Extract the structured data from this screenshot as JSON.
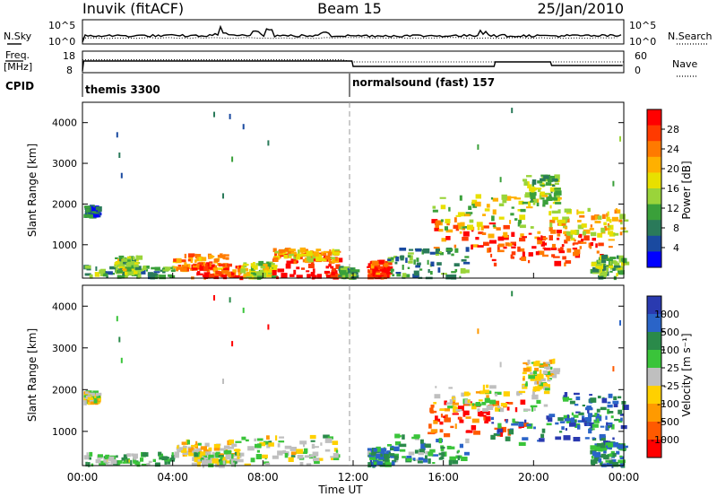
{
  "header": {
    "station": "Inuvik (fitACF)",
    "beam": "Beam 15",
    "date": "25/Jan/2010"
  },
  "summary": {
    "nsky_label": "N.Sky",
    "nsearch_label": "N.Search",
    "freq_label_1": "Freq.",
    "freq_label_2": "[MHz]",
    "nave_label": "Nave",
    "cpid_label": "CPID",
    "count_ticks": [
      "10^5",
      "10^0"
    ],
    "freq_ticks": [
      "18",
      "8"
    ],
    "nave_ticks": [
      "60",
      "0"
    ],
    "cpid_segments": [
      {
        "label": "themis 3300",
        "start_hour": 0,
        "end_hour": 12
      },
      {
        "label": "normalsound (fast) 157",
        "start_hour": 12,
        "end_hour": 24
      }
    ]
  },
  "colorbars": {
    "power": {
      "label": "Power [dB]",
      "ticks": [
        "28",
        "24",
        "20",
        "16",
        "12",
        "8",
        "4"
      ],
      "colors": [
        "#ff0000",
        "#ff3a00",
        "#ff7a00",
        "#ffb000",
        "#e8e000",
        "#9ad43a",
        "#3aa03a",
        "#2a7a5a",
        "#1a4aa0",
        "#0000ff"
      ]
    },
    "velocity": {
      "label": "Velocity [m s⁻¹]",
      "ticks": [
        "1000",
        "500",
        "100",
        "25",
        "-25",
        "-100",
        "-500",
        "-1000"
      ],
      "colors": [
        "#2a3ab0",
        "#2a64c8",
        "#2a8a4a",
        "#3ac43a",
        "#bfbfbf",
        "#ffd000",
        "#ff9a00",
        "#ff5a00",
        "#ff0000"
      ]
    }
  },
  "chart_data": [
    {
      "type": "heatmap",
      "name": "power",
      "ylabel": "Slant Range [km]",
      "yticks": [
        "4000",
        "3000",
        "2000",
        "1000"
      ],
      "xlabel": "",
      "x_unit": "hours UT",
      "xlim": [
        0,
        24
      ],
      "ylim": [
        180,
        4500
      ],
      "regions": [
        {
          "t0": 0.05,
          "t1": 0.6,
          "r0": 1680,
          "r1": 1930,
          "level": 0.2
        },
        {
          "t0": 0.0,
          "t1": 4.0,
          "r0": 180,
          "r1": 460,
          "level": 0.35
        },
        {
          "t0": 1.4,
          "t1": 2.4,
          "r0": 300,
          "r1": 700,
          "level": 0.45
        },
        {
          "t0": 4.0,
          "t1": 6.4,
          "r0": 380,
          "r1": 760,
          "level": 0.7
        },
        {
          "t0": 4.8,
          "t1": 7.0,
          "r0": 180,
          "r1": 520,
          "level": 0.85
        },
        {
          "t0": 7.0,
          "t1": 8.4,
          "r0": 180,
          "r1": 560,
          "level": 0.5
        },
        {
          "t0": 8.4,
          "t1": 11.3,
          "r0": 180,
          "r1": 780,
          "level": 0.95
        },
        {
          "t0": 8.4,
          "t1": 11.3,
          "r0": 600,
          "r1": 880,
          "level": 0.6
        },
        {
          "t0": 11.3,
          "t1": 12.0,
          "r0": 180,
          "r1": 420,
          "level": 0.35
        },
        {
          "t0": 12.6,
          "t1": 13.5,
          "r0": 180,
          "r1": 580,
          "level": 0.85
        },
        {
          "t0": 15.3,
          "t1": 21.5,
          "r0": 850,
          "r1": 1650,
          "level": 0.8
        },
        {
          "t0": 15.5,
          "t1": 21.0,
          "r0": 1400,
          "r1": 2200,
          "level": 0.5
        },
        {
          "t0": 18.0,
          "t1": 23.5,
          "r0": 500,
          "r1": 1300,
          "level": 0.88
        },
        {
          "t0": 19.5,
          "t1": 21.0,
          "r0": 2000,
          "r1": 2700,
          "level": 0.45
        },
        {
          "t0": 21.0,
          "t1": 24.0,
          "r0": 1100,
          "r1": 1900,
          "level": 0.6
        },
        {
          "t0": 13.5,
          "t1": 17.0,
          "r0": 180,
          "r1": 900,
          "level": 0.3
        },
        {
          "t0": 22.5,
          "t1": 24.0,
          "r0": 180,
          "r1": 700,
          "level": 0.4
        }
      ],
      "speckles": [
        {
          "t": 1.5,
          "r": 3700,
          "level": 0.2
        },
        {
          "t": 1.6,
          "r": 3200,
          "level": 0.3
        },
        {
          "t": 1.7,
          "r": 2700,
          "level": 0.2
        },
        {
          "t": 5.8,
          "r": 4200,
          "level": 0.3
        },
        {
          "t": 6.5,
          "r": 4150,
          "level": 0.2
        },
        {
          "t": 6.6,
          "r": 3100,
          "level": 0.35
        },
        {
          "t": 7.1,
          "r": 3900,
          "level": 0.2
        },
        {
          "t": 8.2,
          "r": 3500,
          "level": 0.3
        },
        {
          "t": 6.2,
          "r": 2200,
          "level": 0.25
        },
        {
          "t": 17.5,
          "r": 3400,
          "level": 0.4
        },
        {
          "t": 19.0,
          "r": 4300,
          "level": 0.3
        },
        {
          "t": 23.8,
          "r": 3600,
          "level": 0.5
        },
        {
          "t": 23.5,
          "r": 2500,
          "level": 0.4
        },
        {
          "t": 18.5,
          "r": 2600,
          "level": 0.4
        }
      ]
    },
    {
      "type": "heatmap",
      "name": "velocity",
      "ylabel": "Slant Range [km]",
      "yticks": [
        "4000",
        "3000",
        "2000",
        "1000"
      ],
      "xlabel": "Time UT",
      "x_unit": "hours UT",
      "xticks": [
        "00:00",
        "04:00",
        "08:00",
        "12:00",
        "16:00",
        "20:00",
        "00:00"
      ],
      "xlim": [
        0,
        24
      ],
      "ylim": [
        180,
        4500
      ],
      "regions": [
        {
          "t0": 0.05,
          "t1": 0.6,
          "r0": 1680,
          "r1": 1930,
          "level": 0.45
        },
        {
          "t0": 0.0,
          "t1": 4.0,
          "r0": 180,
          "r1": 460,
          "level": 0.6
        },
        {
          "t0": 4.0,
          "t1": 7.0,
          "r0": 380,
          "r1": 760,
          "level": 0.4
        },
        {
          "t0": 4.8,
          "t1": 7.0,
          "r0": 180,
          "r1": 520,
          "level": 0.55
        },
        {
          "t0": 7.0,
          "t1": 11.3,
          "r0": 180,
          "r1": 880,
          "level": 0.5
        },
        {
          "t0": 12.6,
          "t1": 13.5,
          "r0": 180,
          "r1": 580,
          "level": 0.72
        },
        {
          "t0": 15.3,
          "t1": 19.5,
          "r0": 900,
          "r1": 1700,
          "level": 0.08
        },
        {
          "t0": 15.5,
          "t1": 20.5,
          "r0": 1500,
          "r1": 2100,
          "level": 0.45
        },
        {
          "t0": 18.0,
          "t1": 23.5,
          "r0": 600,
          "r1": 1400,
          "level": 0.8
        },
        {
          "t0": 19.5,
          "t1": 21.0,
          "r0": 2000,
          "r1": 2700,
          "level": 0.45
        },
        {
          "t0": 21.0,
          "t1": 24.0,
          "r0": 1100,
          "r1": 1900,
          "level": 0.78
        },
        {
          "t0": 13.5,
          "t1": 17.0,
          "r0": 180,
          "r1": 900,
          "level": 0.7
        },
        {
          "t0": 22.5,
          "t1": 24.0,
          "r0": 180,
          "r1": 700,
          "level": 0.72
        }
      ],
      "speckles": [
        {
          "t": 1.5,
          "r": 3700,
          "level": 0.6
        },
        {
          "t": 1.6,
          "r": 3200,
          "level": 0.7
        },
        {
          "t": 1.7,
          "r": 2700,
          "level": 0.6
        },
        {
          "t": 5.8,
          "r": 4200,
          "level": 0.1
        },
        {
          "t": 6.5,
          "r": 4150,
          "level": 0.7
        },
        {
          "t": 6.6,
          "r": 3100,
          "level": 0.1
        },
        {
          "t": 7.1,
          "r": 3900,
          "level": 0.6
        },
        {
          "t": 8.2,
          "r": 3500,
          "level": 0.1
        },
        {
          "t": 6.2,
          "r": 2200,
          "level": 0.5
        },
        {
          "t": 17.5,
          "r": 3400,
          "level": 0.3
        },
        {
          "t": 19.0,
          "r": 4300,
          "level": 0.7
        },
        {
          "t": 23.8,
          "r": 3600,
          "level": 0.8
        },
        {
          "t": 23.5,
          "r": 2500,
          "level": 0.2
        },
        {
          "t": 18.5,
          "r": 2600,
          "level": 0.45
        }
      ]
    }
  ]
}
